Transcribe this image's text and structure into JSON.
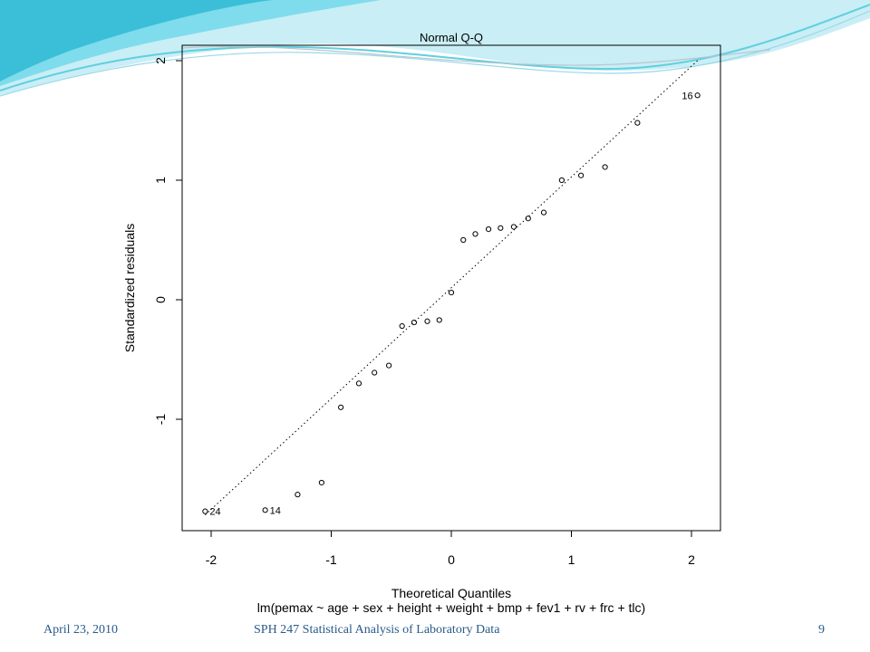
{
  "footer": {
    "date": "April 23, 2010",
    "course": "SPH 247 Statistical Analysis of Laboratory Data",
    "page": "9"
  },
  "colors": {
    "footer_text": "#2a5a8a",
    "swoosh_light": "#c9eef5",
    "swoosh_mid": "#7fdcec",
    "swoosh_dark": "#3bbfd8"
  },
  "chart_data": {
    "type": "scatter",
    "title": "Normal Q-Q",
    "xlabel": "Theoretical Quantiles",
    "ylabel": "Standardized residuals",
    "subtitle": "lm(pemax ~ age + sex + height + weight + bmp + fev1 + rv + frc + tlc)",
    "xlim": [
      -2.2,
      2.2
    ],
    "ylim": [
      -1.9,
      2.1
    ],
    "xticks": [
      -2,
      -1,
      0,
      1,
      2
    ],
    "yticks": [
      -1,
      0,
      1,
      2
    ],
    "reference_line": {
      "type": "dotted",
      "x0": -2.05,
      "y0": -1.8,
      "x1": 2.05,
      "y1": 2.0
    },
    "points": [
      {
        "x": -2.05,
        "y": -1.77,
        "label": "24"
      },
      {
        "x": -1.55,
        "y": -1.76,
        "label": "14"
      },
      {
        "x": -1.28,
        "y": -1.63,
        "label": ""
      },
      {
        "x": -1.08,
        "y": -1.53,
        "label": ""
      },
      {
        "x": -0.92,
        "y": -0.9,
        "label": ""
      },
      {
        "x": -0.77,
        "y": -0.7,
        "label": ""
      },
      {
        "x": -0.64,
        "y": -0.61,
        "label": ""
      },
      {
        "x": -0.52,
        "y": -0.55,
        "label": ""
      },
      {
        "x": -0.41,
        "y": -0.22,
        "label": ""
      },
      {
        "x": -0.31,
        "y": -0.19,
        "label": ""
      },
      {
        "x": -0.2,
        "y": -0.18,
        "label": ""
      },
      {
        "x": -0.1,
        "y": -0.17,
        "label": ""
      },
      {
        "x": 0.0,
        "y": 0.06,
        "label": ""
      },
      {
        "x": 0.1,
        "y": 0.5,
        "label": ""
      },
      {
        "x": 0.2,
        "y": 0.55,
        "label": ""
      },
      {
        "x": 0.31,
        "y": 0.59,
        "label": ""
      },
      {
        "x": 0.41,
        "y": 0.6,
        "label": ""
      },
      {
        "x": 0.52,
        "y": 0.61,
        "label": ""
      },
      {
        "x": 0.64,
        "y": 0.68,
        "label": ""
      },
      {
        "x": 0.77,
        "y": 0.73,
        "label": ""
      },
      {
        "x": 0.92,
        "y": 1.0,
        "label": ""
      },
      {
        "x": 1.08,
        "y": 1.04,
        "label": ""
      },
      {
        "x": 1.28,
        "y": 1.11,
        "label": ""
      },
      {
        "x": 1.55,
        "y": 1.48,
        "label": ""
      },
      {
        "x": 2.05,
        "y": 1.71,
        "label": "16"
      }
    ]
  }
}
